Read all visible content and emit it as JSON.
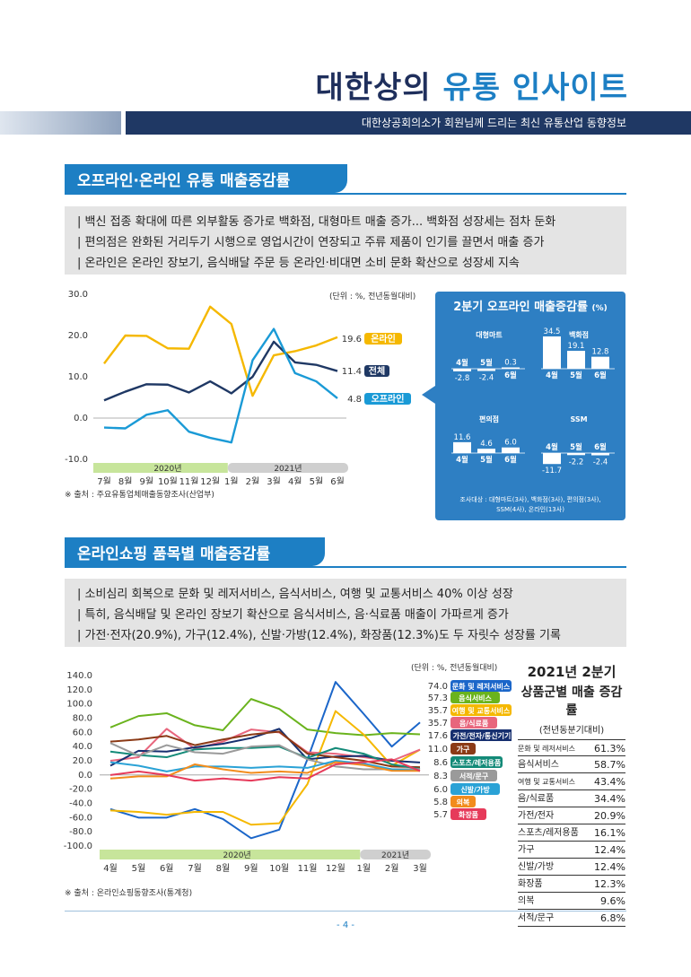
{
  "header": {
    "title_part1": "대한상의",
    "title_part2": "유통 인사이트",
    "subtitle": "대한상공회의소가 회원님께 드리는 최신 유통산업 동향정보"
  },
  "section1": {
    "title": "오프라인·온라인 유통 매출증감률",
    "bullets": [
      "| 백신 접종 확대에 따른 외부활동 증가로 백화점, 대형마트 매출 증가... 백화점 성장세는 점차 둔화",
      "| 편의점은 완화된 거리두기 시행으로 영업시간이 연장되고 주류 제품이 인기를 끌면서 매출 증가",
      "| 온라인은 온라인 장보기, 음식배달 주문 등 온라인·비대면 소비 문화 확산으로 성장세 지속"
    ],
    "unit": "(단위 : %, 전년동월대비)",
    "source": "※ 출처 : 주요유통업체매출동향조사(산업부)",
    "year_bands": [
      "2020년",
      "2021년"
    ]
  },
  "panel": {
    "title": "2분기 오프라인 매출증감률",
    "title_unit": "(%)",
    "note_line1": "조사대상 : 대형마트(3사), 백화점(3사), 편의점(3사),",
    "note_line2": "SSM(4사), 온라인(13사)",
    "groups": [
      {
        "name": "대형마트",
        "months": [
          "4월",
          "5월",
          "6월"
        ],
        "values": [
          -2.8,
          -2.4,
          0.3
        ],
        "labels": [
          "-2.8",
          "-2.4",
          "0.3"
        ]
      },
      {
        "name": "백화점",
        "months": [
          "4월",
          "5월",
          "6월"
        ],
        "values": [
          34.5,
          19.1,
          12.8
        ],
        "labels": [
          "34.5",
          "19.1",
          "12.8"
        ]
      },
      {
        "name": "편의점",
        "months": [
          "4월",
          "5월",
          "6월"
        ],
        "values": [
          11.6,
          4.6,
          6.0
        ],
        "labels": [
          "11.6",
          "4.6",
          "6.0"
        ]
      },
      {
        "name": "SSM",
        "months": [
          "4월",
          "5월",
          "6월"
        ],
        "values": [
          -11.7,
          -2.2,
          -2.4
        ],
        "labels": [
          "-11.7",
          "-2.2",
          "-2.4"
        ]
      }
    ]
  },
  "section2": {
    "title": "온라인쇼핑 품목별 매출증감률",
    "bullets": [
      "| 소비심리 회복으로 문화 및 레저서비스, 음식서비스, 여행 및 교통서비스 40% 이상 성장",
      "| 특히, 음식배달 및 온라인 장보기 확산으로 음식서비스, 음·식료품 매출이 가파르게 증가",
      "| 가전·전자(20.9%), 가구(12.4%), 신발·가방(12.4%), 화장품(12.3%)도 두 자릿수 성장률 기록"
    ],
    "unit": "(단위 : %, 전년동월대비)",
    "source": "※ 출처 : 온라인쇼핑동향조사(통계청)",
    "year_bands": [
      "2020년",
      "2021년"
    ]
  },
  "table": {
    "title1": "2021년 2분기",
    "title2": "상품군별 매출 증감률",
    "title3": "(전년동분기대비)",
    "rows": [
      {
        "cat": "문화 및 레저서비스",
        "val": "61.3%",
        "small": true
      },
      {
        "cat": "음식서비스",
        "val": "58.7%",
        "small": false
      },
      {
        "cat": "여행 및 교통서비스",
        "val": "43.4%",
        "small": true
      },
      {
        "cat": "음/식료품",
        "val": "34.4%",
        "small": false
      },
      {
        "cat": "가전/전자",
        "val": "20.9%",
        "small": false
      },
      {
        "cat": "스포츠/레저용품",
        "val": "16.1%",
        "small": false
      },
      {
        "cat": "가구",
        "val": "12.4%",
        "small": false
      },
      {
        "cat": "신발/가방",
        "val": "12.4%",
        "small": false
      },
      {
        "cat": "화장품",
        "val": "12.3%",
        "small": false
      },
      {
        "cat": "의복",
        "val": "9.6%",
        "small": false
      },
      {
        "cat": "서적/문구",
        "val": "6.8%",
        "small": false
      }
    ]
  },
  "page_number": "- 4 -",
  "chart_data": [
    {
      "type": "line",
      "title": "",
      "categories": [
        "7월",
        "8월",
        "9월",
        "10월",
        "11월",
        "12월",
        "1월",
        "2월",
        "3월",
        "4월",
        "5월",
        "6월"
      ],
      "ylim": [
        -10,
        30
      ],
      "yticks": [
        "30.0",
        "20.0",
        "10.0",
        "0.0",
        "-10.0"
      ],
      "series": [
        {
          "name": "온라인",
          "color": "#f5b800",
          "end_label": "19.6",
          "values": [
            13.2,
            20.0,
            19.9,
            16.9,
            16.8,
            27.0,
            22.8,
            5.4,
            15.2,
            16.2,
            17.6,
            19.6
          ]
        },
        {
          "name": "전체",
          "color": "#1f3864",
          "end_label": "11.4",
          "values": [
            4.3,
            6.4,
            8.2,
            8.1,
            6.2,
            8.9,
            6.0,
            10.0,
            18.5,
            13.5,
            12.9,
            11.4
          ]
        },
        {
          "name": "오프라인",
          "color": "#1a9ad6",
          "end_label": "4.8",
          "values": [
            -2.3,
            -2.5,
            0.8,
            1.9,
            -3.3,
            -4.8,
            -5.9,
            14.0,
            21.6,
            10.9,
            8.9,
            4.8
          ]
        }
      ]
    },
    {
      "type": "line",
      "title": "",
      "categories": [
        "4월",
        "5월",
        "6월",
        "7월",
        "8월",
        "9월",
        "10월",
        "11월",
        "12월",
        "1월",
        "2월",
        "3월"
      ],
      "ylim": [
        -100,
        140
      ],
      "yticks": [
        "140.0",
        "120.0",
        "100.0",
        "80.0",
        "60.0",
        "40.0",
        "20.0",
        "0.0",
        "-20.0",
        "-40.0",
        "-60.0",
        "-80.0",
        "-100.0"
      ],
      "series": [
        {
          "name": "문화 및 레저서비스",
          "color": "#1b66c9",
          "end_label": "74.0",
          "values": [
            -48.0,
            -60.0,
            -60.0,
            -48.0,
            -62.0,
            -89.0,
            -77.0,
            22.0,
            131.0,
            86.0,
            40.0,
            74.0
          ]
        },
        {
          "name": "음식서비스",
          "color": "#6ab31d",
          "end_label": "57.3",
          "values": [
            67.0,
            83.0,
            87.0,
            70.0,
            63.0,
            107.0,
            93.0,
            64.0,
            59.0,
            56.0,
            59.0,
            57.3
          ]
        },
        {
          "name": "여행 및 교통서비스",
          "color": "#f5b800",
          "end_label": "35.7",
          "values": [
            -50.0,
            -52.0,
            -56.0,
            -52.0,
            -52.0,
            -70.0,
            -68.0,
            -13.0,
            90.0,
            57.0,
            13.0,
            35.7
          ]
        },
        {
          "name": "음/식료품",
          "color": "#e8667d",
          "end_label": "35.7",
          "values": [
            20.0,
            25.0,
            65.0,
            37.0,
            47.0,
            64.0,
            60.0,
            32.0,
            30.0,
            25.0,
            20.0,
            35.7
          ]
        },
        {
          "name": "가전/전자/통신기기",
          "color": "#162f6f",
          "end_label": "17.6",
          "values": [
            13.0,
            34.0,
            33.0,
            39.0,
            44.0,
            52.0,
            65.0,
            22.0,
            26.0,
            27.0,
            20.0,
            17.6
          ]
        },
        {
          "name": "가구",
          "color": "#8b3a16",
          "end_label": "11.0",
          "values": [
            47.0,
            50.0,
            55.0,
            42.0,
            50.0,
            57.0,
            61.0,
            30.0,
            25.0,
            20.0,
            12.0,
            11.0
          ]
        },
        {
          "name": "스포츠/레저용품",
          "color": "#138a78",
          "end_label": "8.6",
          "values": [
            33.0,
            28.0,
            25.0,
            36.0,
            38.0,
            38.0,
            40.0,
            24.0,
            38.0,
            30.0,
            15.0,
            8.6
          ]
        },
        {
          "name": "서적/문구",
          "color": "#9a9a9a",
          "end_label": "8.3",
          "values": [
            45.0,
            27.0,
            42.0,
            32.0,
            30.0,
            40.0,
            42.0,
            22.0,
            12.0,
            8.0,
            8.0,
            8.3
          ]
        },
        {
          "name": "신발/가방",
          "color": "#2aa2d6",
          "end_label": "6.0",
          "values": [
            18.0,
            13.0,
            5.0,
            12.0,
            12.0,
            10.0,
            12.0,
            10.0,
            20.0,
            16.0,
            8.0,
            6.0
          ]
        },
        {
          "name": "의복",
          "color": "#f28c1c",
          "end_label": "5.8",
          "values": [
            -5.0,
            -2.0,
            -2.0,
            15.0,
            8.0,
            3.0,
            5.0,
            3.0,
            18.0,
            14.0,
            6.0,
            5.8
          ]
        },
        {
          "name": "화장품",
          "color": "#e63a5a",
          "end_label": "5.7",
          "values": [
            0.0,
            5.0,
            0.0,
            -8.0,
            -5.0,
            -8.0,
            -3.0,
            -5.0,
            15.0,
            18.0,
            22.0,
            5.7
          ]
        }
      ]
    }
  ]
}
